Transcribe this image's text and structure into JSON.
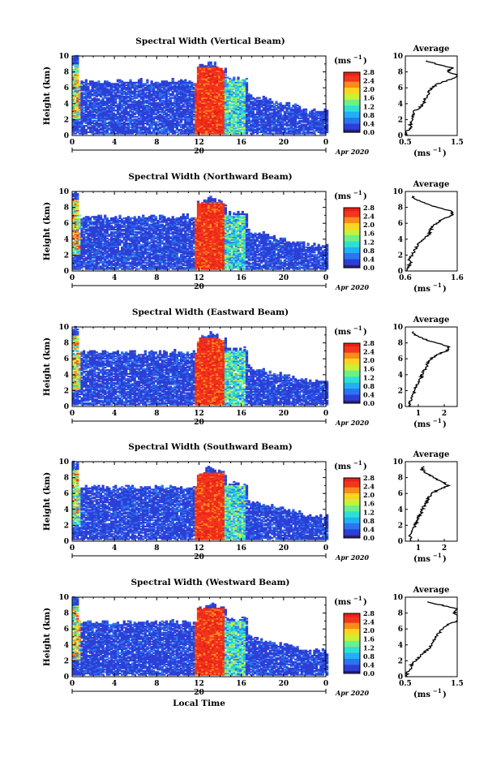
{
  "figure": {
    "xlabel": "Local Time",
    "ylabel": "Height (km)",
    "date_label": "Apr 2020",
    "day_label": "20",
    "colorbar_unit": "(ms",
    "colorbar_unit_sup": "−1",
    "colorbar_unit_close": ")",
    "average_title": "Average",
    "colors": {
      "colormap": [
        "#2a1f7a",
        "#2c3fd6",
        "#2b75f0",
        "#22b0f5",
        "#2ee0d2",
        "#6cf08a",
        "#c9f03a",
        "#fbd51f",
        "#fb8a1c",
        "#f3361d",
        "#e8201a"
      ],
      "axis": "#000000",
      "background": "#ffffff"
    }
  },
  "chart_data": [
    {
      "type": "heatmap",
      "title": "Spectral Width (Vertical Beam)",
      "xlabel": "",
      "ylabel": "Height (km)",
      "xlim": [
        0,
        24
      ],
      "ylim": [
        0,
        10
      ],
      "xticks": [
        "0",
        "4",
        "8",
        "12",
        "16",
        "20",
        "0"
      ],
      "yticks": [
        "0",
        "2",
        "4",
        "6",
        "8",
        "10"
      ],
      "colorbar": {
        "label": "(ms−1)",
        "range": [
          0,
          2.8
        ],
        "ticks": [
          "0.0",
          "0.4",
          "0.8",
          "1.2",
          "1.6",
          "2.0",
          "2.4",
          "2.8"
        ]
      },
      "average": {
        "title": "Average",
        "xlabel": "(ms−1)",
        "xlim": [
          0.5,
          1.5
        ],
        "xticks": [
          "0.5",
          "1.5"
        ],
        "profile": [
          [
            0.5,
            0
          ],
          [
            0.52,
            0.5
          ],
          [
            0.6,
            1
          ],
          [
            0.6,
            1.5
          ],
          [
            0.62,
            2
          ],
          [
            0.65,
            2.5
          ],
          [
            0.66,
            3
          ],
          [
            0.78,
            3.5
          ],
          [
            0.85,
            4
          ],
          [
            0.87,
            4.5
          ],
          [
            0.92,
            5
          ],
          [
            0.95,
            5.5
          ],
          [
            1.02,
            6
          ],
          [
            1.12,
            6.5
          ],
          [
            1.35,
            7
          ],
          [
            1.55,
            7.5
          ],
          [
            1.3,
            8
          ],
          [
            1.4,
            8.5
          ],
          [
            1.1,
            9
          ],
          [
            0.85,
            9.5
          ]
        ]
      }
    },
    {
      "type": "heatmap",
      "title": "Spectral Width (Northward Beam)",
      "xlabel": "",
      "ylabel": "Height (km)",
      "xlim": [
        0,
        24
      ],
      "ylim": [
        0,
        10
      ],
      "xticks": [
        "0",
        "4",
        "8",
        "12",
        "16",
        "20",
        "0"
      ],
      "yticks": [
        "0",
        "2",
        "4",
        "6",
        "8",
        "10"
      ],
      "colorbar": {
        "label": "(ms−1)",
        "range": [
          0,
          2.8
        ],
        "ticks": [
          "0.0",
          "0.4",
          "0.8",
          "1.2",
          "1.6",
          "2.0",
          "2.4",
          "2.8"
        ]
      },
      "average": {
        "title": "Average",
        "xlabel": "(ms−1)",
        "xlim": [
          0.6,
          1.6
        ],
        "xticks": [
          "0.6",
          "1.6"
        ],
        "profile": [
          [
            0.62,
            0
          ],
          [
            0.66,
            0.5
          ],
          [
            0.7,
            1
          ],
          [
            0.68,
            1.5
          ],
          [
            0.72,
            2
          ],
          [
            0.78,
            2.5
          ],
          [
            0.82,
            3
          ],
          [
            0.86,
            3.5
          ],
          [
            0.95,
            4
          ],
          [
            1.05,
            4.5
          ],
          [
            1.08,
            5
          ],
          [
            1.1,
            5.5
          ],
          [
            1.2,
            6
          ],
          [
            1.3,
            6.5
          ],
          [
            1.5,
            7
          ],
          [
            1.5,
            7.5
          ],
          [
            1.2,
            8
          ],
          [
            1.0,
            8.5
          ],
          [
            0.82,
            9
          ],
          [
            0.7,
            9.5
          ]
        ]
      }
    },
    {
      "type": "heatmap",
      "title": "Spectral Width (Eastward Beam)",
      "xlabel": "",
      "ylabel": "Height (km)",
      "xlim": [
        0,
        24
      ],
      "ylim": [
        0,
        10
      ],
      "xticks": [
        "0",
        "4",
        "8",
        "12",
        "16",
        "20",
        "0"
      ],
      "yticks": [
        "0",
        "2",
        "4",
        "6",
        "8",
        "10"
      ],
      "colorbar": {
        "label": "(ms−1)",
        "range": [
          0,
          2.8
        ],
        "ticks": [
          "0.0",
          "0.4",
          "0.8",
          "1.2",
          "1.6",
          "2.0",
          "2.4",
          "2.8"
        ]
      },
      "average": {
        "title": "Average",
        "xlabel": "(ms−1)",
        "xlim": [
          0.5,
          2.5
        ],
        "xticks": [
          "1",
          "2"
        ],
        "profile": [
          [
            0.7,
            0
          ],
          [
            0.65,
            0.5
          ],
          [
            0.72,
            1
          ],
          [
            0.8,
            1.5
          ],
          [
            0.85,
            2
          ],
          [
            0.92,
            2.5
          ],
          [
            1.0,
            3
          ],
          [
            1.1,
            3.5
          ],
          [
            1.15,
            4
          ],
          [
            1.22,
            4.5
          ],
          [
            1.3,
            5
          ],
          [
            1.38,
            5.5
          ],
          [
            1.5,
            6
          ],
          [
            1.7,
            6.5
          ],
          [
            2.1,
            7
          ],
          [
            2.2,
            7.5
          ],
          [
            1.7,
            8
          ],
          [
            1.2,
            8.5
          ],
          [
            0.9,
            9
          ],
          [
            0.75,
            9.5
          ]
        ]
      }
    },
    {
      "type": "heatmap",
      "title": "Spectral Width (Southward Beam)",
      "xlabel": "",
      "ylabel": "Height (km)",
      "xlim": [
        0,
        24
      ],
      "ylim": [
        0,
        10
      ],
      "xticks": [
        "0",
        "4",
        "8",
        "12",
        "16",
        "20",
        "0"
      ],
      "yticks": [
        "0",
        "2",
        "4",
        "6",
        "8",
        "10"
      ],
      "colorbar": {
        "label": "(ms−1)",
        "range": [
          0,
          2.8
        ],
        "ticks": [
          "0.0",
          "0.4",
          "0.8",
          "1.2",
          "1.6",
          "2.0",
          "2.4",
          "2.8"
        ]
      },
      "average": {
        "title": "Average",
        "xlabel": "(ms−1)",
        "xlim": [
          0.5,
          2.5
        ],
        "xticks": [
          "1",
          "2"
        ],
        "profile": [
          [
            0.7,
            0
          ],
          [
            0.68,
            0.5
          ],
          [
            0.72,
            1
          ],
          [
            0.82,
            1.5
          ],
          [
            0.88,
            2
          ],
          [
            0.95,
            2.5
          ],
          [
            1.0,
            3
          ],
          [
            1.1,
            3.5
          ],
          [
            1.15,
            4
          ],
          [
            1.25,
            4.5
          ],
          [
            1.32,
            5
          ],
          [
            1.4,
            5.5
          ],
          [
            1.5,
            6
          ],
          [
            1.8,
            6.5
          ],
          [
            2.15,
            7
          ],
          [
            1.9,
            7.5
          ],
          [
            1.6,
            8
          ],
          [
            1.3,
            8.5
          ],
          [
            1.15,
            9
          ],
          [
            1.2,
            9.5
          ]
        ]
      }
    },
    {
      "type": "heatmap",
      "title": "Spectral Width (Westward Beam)",
      "xlabel": "Local Time",
      "ylabel": "Height (km)",
      "xlim": [
        0,
        24
      ],
      "ylim": [
        0,
        10
      ],
      "xticks": [
        "0",
        "4",
        "8",
        "12",
        "16",
        "20",
        "0"
      ],
      "yticks": [
        "0",
        "2",
        "4",
        "6",
        "8",
        "10"
      ],
      "colorbar": {
        "label": "(ms−1)",
        "range": [
          0,
          2.8
        ],
        "ticks": [
          "0.0",
          "0.4",
          "0.8",
          "1.2",
          "1.6",
          "2.0",
          "2.4",
          "2.8"
        ]
      },
      "average": {
        "title": "Average",
        "xlabel": "(ms−1)",
        "xlim": [
          0.5,
          1.5
        ],
        "xticks": [
          "0.5",
          "1.5"
        ],
        "profile": [
          [
            0.55,
            0
          ],
          [
            0.52,
            0.5
          ],
          [
            0.6,
            1
          ],
          [
            0.62,
            1.5
          ],
          [
            0.7,
            2
          ],
          [
            0.78,
            2.5
          ],
          [
            0.85,
            3
          ],
          [
            0.95,
            3.5
          ],
          [
            1.0,
            4
          ],
          [
            1.05,
            4.5
          ],
          [
            1.1,
            5
          ],
          [
            1.15,
            5.5
          ],
          [
            1.2,
            6
          ],
          [
            1.3,
            6.5
          ],
          [
            1.5,
            7
          ],
          [
            1.6,
            7.5
          ],
          [
            1.45,
            8
          ],
          [
            1.5,
            8.5
          ],
          [
            1.2,
            9
          ],
          [
            0.85,
            9.5
          ]
        ]
      }
    }
  ]
}
